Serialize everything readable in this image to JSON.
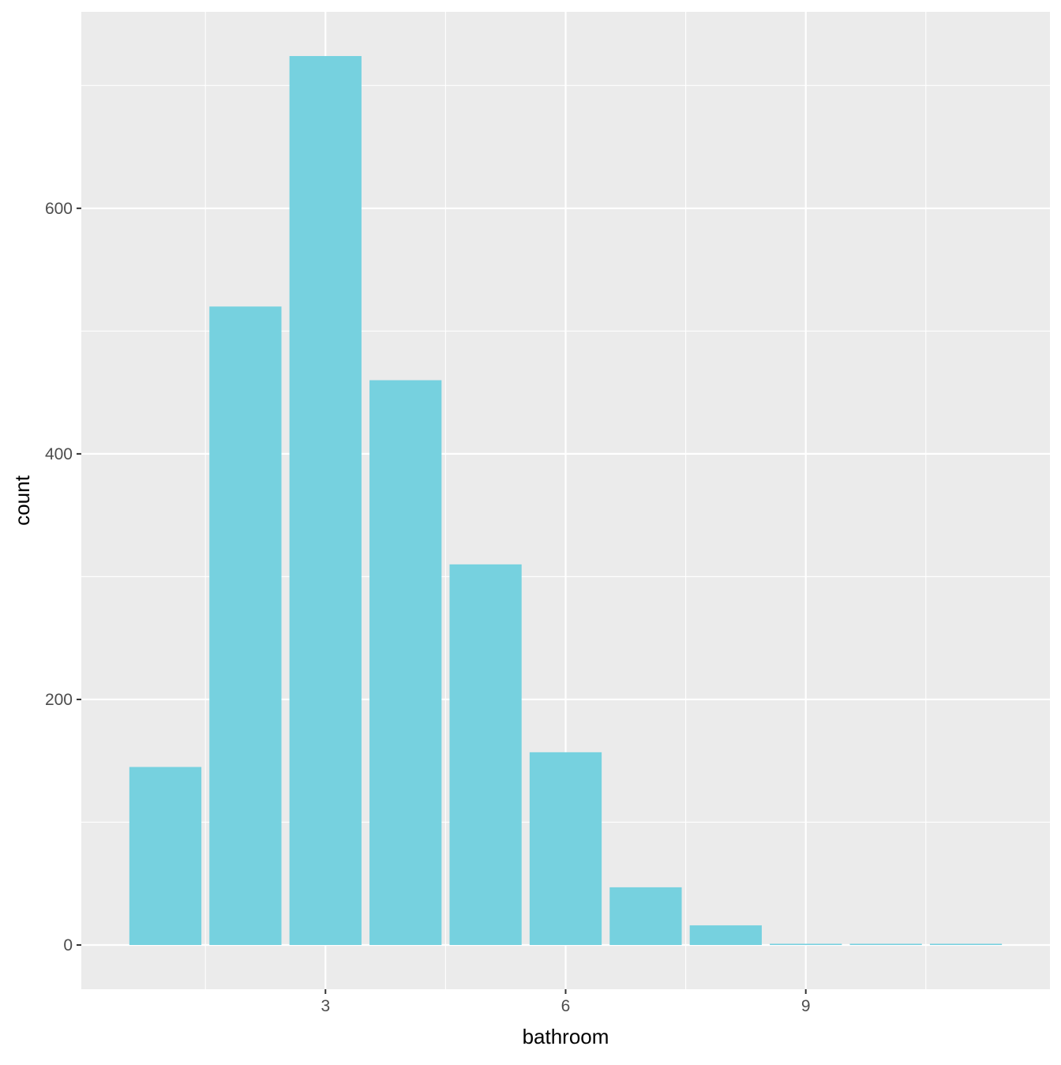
{
  "chart_data": {
    "type": "bar",
    "title": "",
    "xlabel": "bathroom",
    "ylabel": "count",
    "x": [
      1,
      2,
      3,
      4,
      5,
      6,
      7,
      8,
      9,
      10,
      11
    ],
    "values": [
      145,
      520,
      724,
      460,
      310,
      157,
      47,
      16,
      1,
      1,
      1
    ],
    "xlim": [
      -0.05,
      12.05
    ],
    "ylim": [
      -36,
      760
    ],
    "x_ticks": [
      3,
      6,
      9
    ],
    "x_tick_labels": [
      "3",
      "6",
      "9"
    ],
    "y_ticks": [
      0,
      200,
      400,
      600
    ],
    "y_tick_labels": [
      "0",
      "200",
      "400",
      "600"
    ],
    "grid": true,
    "legend": "none",
    "colors": {
      "bar": "#76D1DF",
      "panel": "#EBEBEB",
      "grid": "#FFFFFF",
      "tick_text": "#4D4D4D",
      "axis_title": "#000000"
    }
  }
}
